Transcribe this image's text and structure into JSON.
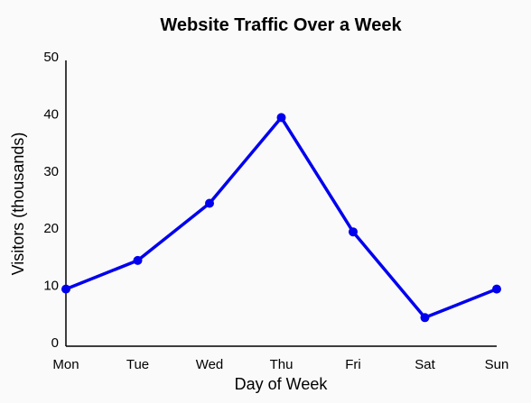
{
  "chart_data": {
    "type": "line",
    "title": "Website Traffic Over a Week",
    "xlabel": "Day of Week",
    "ylabel": "Visitors (thousands)",
    "categories": [
      "Mon",
      "Tue",
      "Wed",
      "Thu",
      "Fri",
      "Sat",
      "Sun"
    ],
    "values": [
      10,
      15,
      25,
      40,
      20,
      5,
      10
    ],
    "ylim": [
      0,
      50
    ],
    "yticks": [
      "0",
      "10",
      "20",
      "30",
      "40",
      "50"
    ],
    "line_color": "#0000ee",
    "grid": false,
    "legend": "none"
  }
}
